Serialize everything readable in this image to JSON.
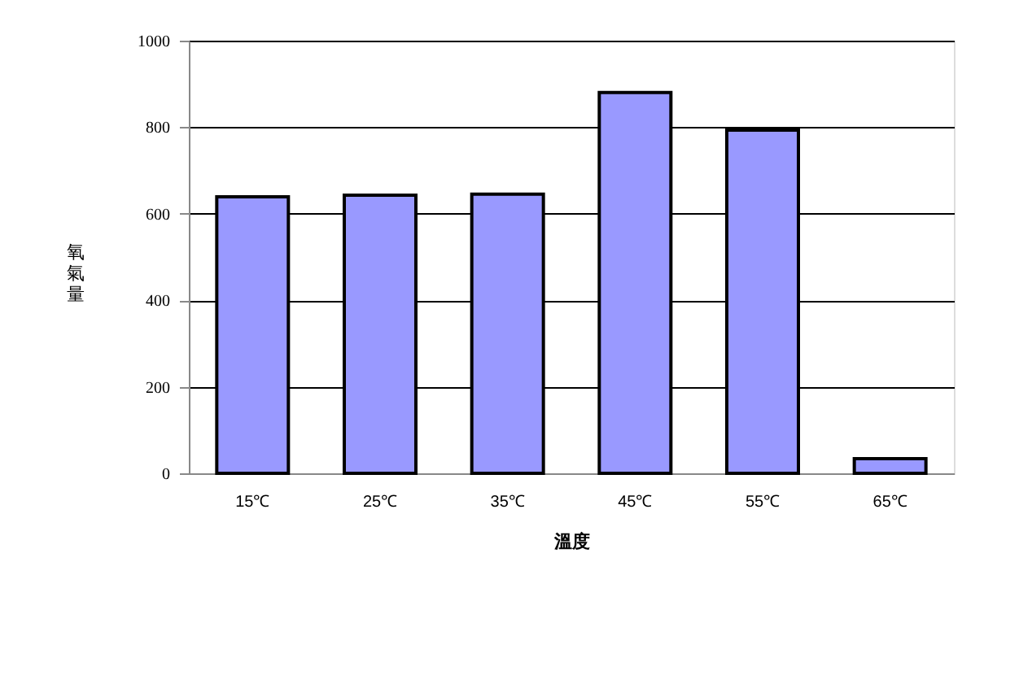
{
  "chart_data": {
    "type": "bar",
    "xlabel": "溫度",
    "ylabel": "氧氣量",
    "categories": [
      "15℃",
      "25℃",
      "35℃",
      "45℃",
      "55℃",
      "65℃"
    ],
    "values": [
      639,
      643,
      645,
      880,
      793,
      34
    ],
    "color": "#9999ff",
    "ylim": [
      0,
      1000
    ],
    "yticks": [
      0,
      200,
      400,
      600,
      800,
      1000
    ],
    "grid": "y"
  }
}
